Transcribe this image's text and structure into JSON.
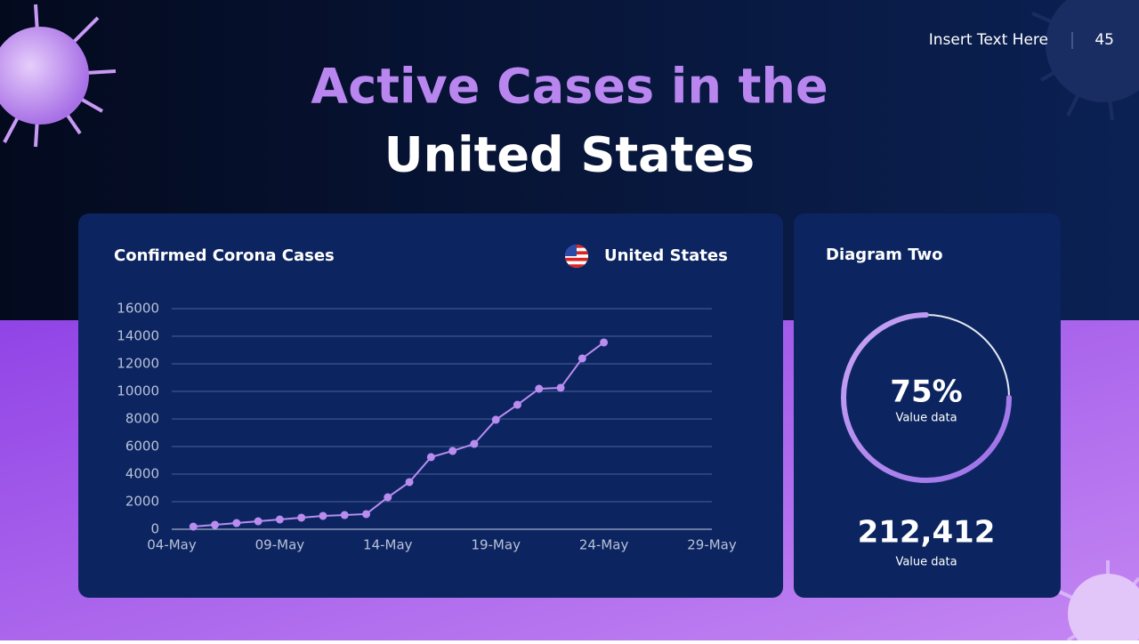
{
  "header": {
    "caption": "Insert Text Here",
    "page_number": "45",
    "title_line_1": "Active Cases in the",
    "title_line_2": "United States"
  },
  "chart_data": [
    {
      "type": "line",
      "title": "Confirmed Corona Cases",
      "x": [
        "05-May",
        "06-May",
        "07-May",
        "08-May",
        "09-May",
        "10-May",
        "11-May",
        "12-May",
        "13-May",
        "14-May",
        "15-May",
        "16-May",
        "17-May",
        "18-May",
        "19-May",
        "20-May",
        "21-May",
        "22-May",
        "23-May",
        "24-May"
      ],
      "series": [
        {
          "name": "United States",
          "color": "#b98cf0",
          "values": [
            190,
            320,
            450,
            580,
            710,
            840,
            970,
            1030,
            1100,
            2320,
            3420,
            5230,
            5680,
            6190,
            7940,
            9030,
            10190,
            10260,
            12390,
            13550
          ]
        }
      ],
      "xlim": [
        "04-May",
        "29-May"
      ],
      "xticks": [
        "04-May",
        "09-May",
        "14-May",
        "19-May",
        "24-May",
        "29-May"
      ],
      "ylim": [
        0,
        16000
      ],
      "yticks": [
        0,
        2000,
        4000,
        6000,
        8000,
        10000,
        12000,
        14000,
        16000
      ],
      "grid": true
    },
    {
      "type": "donut",
      "title": "Diagram Two",
      "values": [
        75
      ],
      "value_labels": [
        "75%"
      ],
      "subtitle": "Value data",
      "ylim": [
        0,
        100
      ],
      "color": "#b98cf0"
    }
  ],
  "summary": {
    "total": "212,412",
    "caption": "Value data"
  }
}
